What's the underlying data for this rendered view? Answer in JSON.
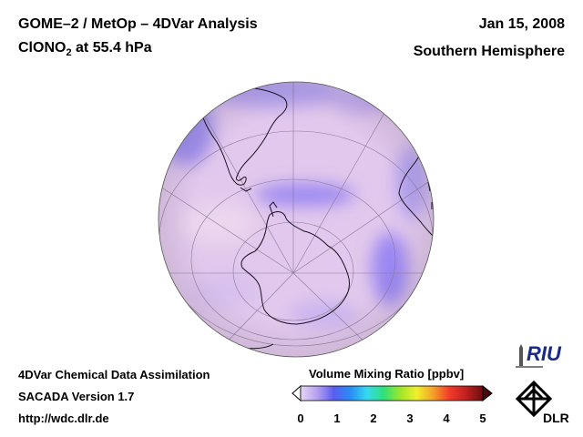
{
  "header": {
    "title": "GOME–2 / MetOp – 4DVar Analysis",
    "species_main": "ClONO",
    "species_sub": "2",
    "species_rest": " at 55.4 hPa",
    "date": "Jan 15, 2008",
    "hemisphere": "Southern Hemisphere"
  },
  "footer": {
    "line1": "4DVar Chemical Data Assimilation",
    "line2": "SACADA Version 1.7",
    "line3": "http://wdc.dlr.de"
  },
  "colorbar": {
    "title": "Volume Mixing Ratio [ppbv]",
    "ticks": [
      "0",
      "1",
      "2",
      "3",
      "4",
      "5"
    ],
    "colors": [
      "#e6d6f2",
      "#b5a0f0",
      "#5a5cf0",
      "#2a8cf5",
      "#36d8f0",
      "#2ee07a",
      "#9ce62a",
      "#f0f02a",
      "#f5a02a",
      "#f03a2a",
      "#c02020",
      "#6a1010"
    ]
  },
  "map": {
    "colors": {
      "background_field": "#e2c8ec",
      "low_field": "#a893f0",
      "very_low_field": "#9a86f2",
      "graticule": "#8a7a9a",
      "coast": "#1a1020"
    }
  },
  "logos": {
    "riu": "RIU",
    "dlr": "DLR"
  }
}
